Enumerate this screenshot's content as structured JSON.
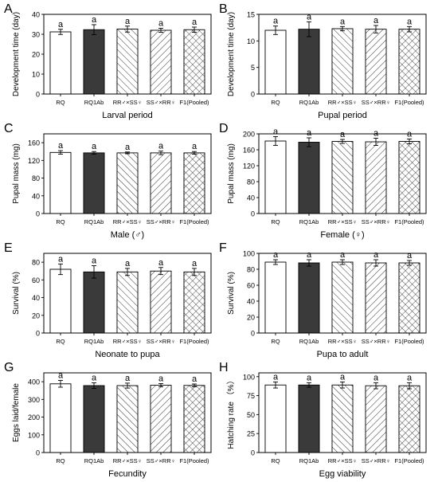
{
  "chart_data": [
    {
      "type": "bar",
      "panel": "A",
      "xlabel": "Larval period",
      "ylabel": "Development time (day)",
      "ylim": [
        0,
        40
      ],
      "yticks": [
        0,
        10,
        20,
        30,
        40
      ],
      "categories": [
        "RQ",
        "RQ1Ab",
        "RR♂×SS♀",
        "SS♂×RR♀",
        "F1(Pooled)"
      ],
      "values": [
        31.2,
        32.3,
        32.6,
        32.0,
        32.3
      ],
      "errors": [
        1.3,
        2.5,
        1.5,
        1.0,
        1.3
      ],
      "letters": [
        "a",
        "a",
        "a",
        "a",
        "a"
      ]
    },
    {
      "type": "bar",
      "panel": "B",
      "xlabel": "Pupal period",
      "ylabel": "Development time (day)",
      "ylim": [
        0,
        15
      ],
      "yticks": [
        0,
        5,
        10,
        15
      ],
      "categories": [
        "RQ",
        "RQ1Ab",
        "RR♂×SS♀",
        "SS♂×RR♀",
        "F1(Pooled)"
      ],
      "values": [
        12.0,
        12.2,
        12.3,
        12.2,
        12.2
      ],
      "errors": [
        0.8,
        1.4,
        0.4,
        0.7,
        0.5
      ],
      "letters": [
        "a",
        "a",
        "a",
        "a",
        "a"
      ]
    },
    {
      "type": "bar",
      "panel": "C",
      "xlabel": "Male (♂)",
      "ylabel": "Pupal mass (mg)",
      "ylim": [
        0,
        180
      ],
      "yticks": [
        0,
        40,
        80,
        120,
        160
      ],
      "categories": [
        "RQ",
        "RQ1Ab",
        "RR♂×SS♀",
        "SS♂×RR♀",
        "F1(Pooled)"
      ],
      "values": [
        138,
        137,
        137,
        137,
        137
      ],
      "errors": [
        4,
        3,
        2,
        4,
        3
      ],
      "letters": [
        "a",
        "a",
        "a",
        "a",
        "a"
      ]
    },
    {
      "type": "bar",
      "panel": "D",
      "xlabel": "Female (♀)",
      "ylabel": "Pupal mass (mg)",
      "ylim": [
        0,
        200
      ],
      "yticks": [
        0,
        40,
        80,
        120,
        160,
        200
      ],
      "categories": [
        "RQ",
        "RQ1Ab",
        "RR♂×SS♀",
        "SS♂×RR♀",
        "F1(Pooled)"
      ],
      "values": [
        182,
        179,
        181,
        180,
        181
      ],
      "errors": [
        11,
        11,
        5,
        9,
        6
      ],
      "letters": [
        "a",
        "a",
        "a",
        "a",
        "a"
      ]
    },
    {
      "type": "bar",
      "panel": "E",
      "xlabel": "Neonate to pupa",
      "ylabel": "Survival (%)",
      "ylim": [
        0,
        90
      ],
      "yticks": [
        0,
        20,
        40,
        60,
        80
      ],
      "categories": [
        "RQ",
        "RQ1Ab",
        "RR♂×SS♀",
        "SS♂×RR♀",
        "F1(Pooled)"
      ],
      "values": [
        72,
        69,
        69,
        70,
        69
      ],
      "errors": [
        6,
        7,
        4,
        4,
        4
      ],
      "letters": [
        "a",
        "a",
        "a",
        "a",
        "a"
      ]
    },
    {
      "type": "bar",
      "panel": "F",
      "xlabel": "Pupa to adult",
      "ylabel": "Survival (%)",
      "ylim": [
        0,
        100
      ],
      "yticks": [
        0,
        20,
        40,
        60,
        80,
        100
      ],
      "categories": [
        "RQ",
        "RQ1Ab",
        "RR♂×SS♀",
        "SS♂×RR♀",
        "F1(Pooled)"
      ],
      "values": [
        89,
        88,
        89,
        88,
        88
      ],
      "errors": [
        3,
        4,
        3,
        4,
        3
      ],
      "letters": [
        "a",
        "a",
        "a",
        "a",
        "a"
      ]
    },
    {
      "type": "bar",
      "panel": "G",
      "xlabel": "Fecundity",
      "ylabel": "Eggs laid/female",
      "ylim": [
        0,
        450
      ],
      "yticks": [
        0,
        100,
        200,
        300,
        400
      ],
      "categories": [
        "RQ",
        "RQ1Ab",
        "RR♂×SS♀",
        "SS♂×RR♀",
        "F1(Pooled)"
      ],
      "values": [
        388,
        378,
        378,
        380,
        379
      ],
      "errors": [
        19,
        16,
        14,
        9,
        8
      ],
      "letters": [
        "a",
        "a",
        "a",
        "a",
        "a"
      ]
    },
    {
      "type": "bar",
      "panel": "H",
      "xlabel": "Egg viability",
      "ylabel": "Hatching rate （%）",
      "ylim": [
        0,
        105
      ],
      "yticks": [
        0,
        25,
        50,
        75,
        100
      ],
      "categories": [
        "RQ",
        "RQ1Ab",
        "RR♂×SS♀",
        "SS♂×RR♀",
        "F1(Pooled)"
      ],
      "values": [
        89,
        89,
        89,
        88,
        88
      ],
      "errors": [
        4,
        3,
        4,
        4,
        4
      ],
      "letters": [
        "a",
        "a",
        "a",
        "a",
        "a"
      ]
    }
  ],
  "colors": {
    "bar_fill_rq": "#ffffff",
    "bar_fill_rq1ab": "#3a3a3a",
    "stroke": "#000000"
  },
  "bar_patterns": [
    "none",
    "solid",
    "diagonal-left",
    "diagonal-right",
    "crosshatch"
  ]
}
